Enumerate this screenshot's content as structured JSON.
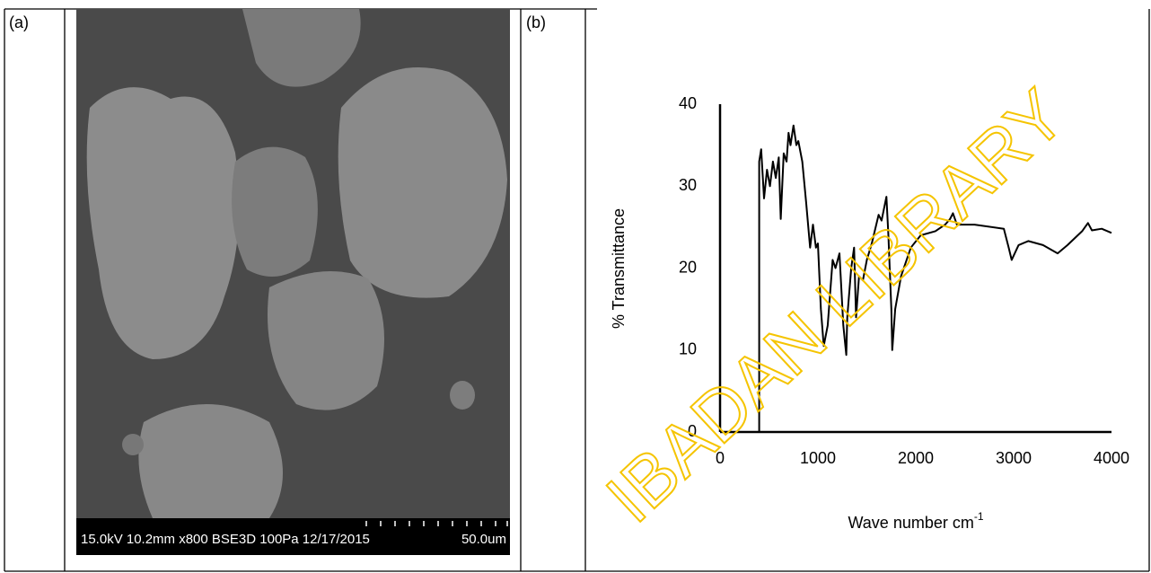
{
  "panels": [
    {
      "label": "(a)"
    },
    {
      "label": "(b)"
    }
  ],
  "micrograph": {
    "caption": "15.0kV 10.2mm x800 BSE3D 100Pa 12/17/2015",
    "scale": "50.0um"
  },
  "watermark": "IBADAN LIBRARY",
  "chart_data": {
    "type": "line",
    "y_label": "% Transmittance",
    "x_label": "Wave number cm",
    "x_label_sup": "-1",
    "xlim": [
      0,
      4000
    ],
    "xticks": [
      0,
      1000,
      2000,
      3000,
      4000
    ],
    "ylim": [
      0,
      40
    ],
    "yticks": [
      0,
      10,
      20,
      30,
      40
    ],
    "grid": false,
    "series": [
      {
        "color": "#000000",
        "x": [
          400,
          400,
          420,
          450,
          480,
          510,
          540,
          570,
          600,
          620,
          650,
          680,
          700,
          720,
          750,
          780,
          800,
          840,
          880,
          920,
          950,
          980,
          1000,
          1030,
          1060,
          1100,
          1150,
          1180,
          1220,
          1260,
          1290,
          1300,
          1340,
          1370,
          1390,
          1420,
          1460,
          1500,
          1550,
          1620,
          1650,
          1700,
          1720,
          1750,
          1760,
          1790,
          1850,
          1950,
          2050,
          2200,
          2300,
          2350,
          2380,
          2420,
          2600,
          2900,
          2950,
          2980,
          3050,
          3150,
          3300,
          3450,
          3550,
          3700,
          3760,
          3800,
          3900,
          4000
        ],
        "values": [
          0,
          33,
          34.5,
          28.5,
          32,
          30,
          33,
          31,
          33.5,
          26,
          34,
          33,
          36.5,
          35,
          37.4,
          35,
          35.5,
          33,
          28,
          22.5,
          25.3,
          22.5,
          23,
          15,
          10.5,
          13,
          21,
          20,
          21.8,
          13,
          9.4,
          14,
          20,
          22.5,
          14,
          19,
          18.5,
          21,
          23,
          26.5,
          25.8,
          28.7,
          24,
          15,
          10,
          15,
          19,
          22.5,
          24,
          24.5,
          25.3,
          26,
          26.7,
          25.3,
          25.3,
          24.8,
          22.5,
          21,
          22.8,
          23.3,
          22.8,
          21.8,
          22.8,
          24.5,
          25.5,
          24.6,
          24.8,
          24.3
        ]
      }
    ]
  }
}
